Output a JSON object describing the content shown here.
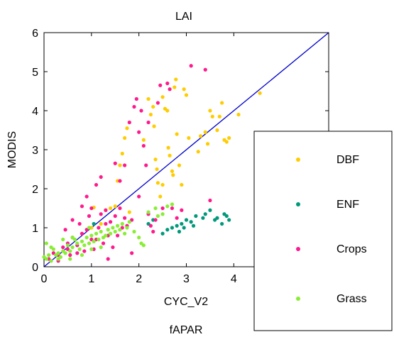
{
  "chart_data": {
    "type": "scatter",
    "title": "LAI",
    "xlabel": "CYC_V2",
    "ylabel": "MODIS",
    "bottom_label": "fAPAR",
    "xlim": [
      0,
      6
    ],
    "ylim": [
      0,
      6
    ],
    "xticks": [
      "0",
      "1",
      "2",
      "3",
      "4"
    ],
    "yticks": [
      "0",
      "1",
      "2",
      "3",
      "4",
      "5",
      "6"
    ],
    "reference_line": {
      "from": [
        0,
        0
      ],
      "to": [
        6,
        6
      ],
      "color": "#0000cc"
    },
    "legend_position": "bottom-right",
    "grid": false,
    "series": [
      {
        "name": "DBF",
        "color": "#ffcc00",
        "points": [
          [
            1.05,
            1.52
          ],
          [
            1.3,
            1.45
          ],
          [
            1.4,
            1.5
          ],
          [
            1.5,
            1.55
          ],
          [
            1.55,
            2.2
          ],
          [
            1.6,
            2.6
          ],
          [
            1.65,
            2.9
          ],
          [
            1.7,
            3.3
          ],
          [
            1.75,
            3.55
          ],
          [
            2.1,
            3.25
          ],
          [
            2.2,
            4.3
          ],
          [
            2.25,
            3.9
          ],
          [
            2.3,
            4.1
          ],
          [
            2.32,
            3.6
          ],
          [
            2.35,
            2.75
          ],
          [
            2.38,
            2.5
          ],
          [
            2.4,
            2.15
          ],
          [
            2.45,
            1.8
          ],
          [
            2.5,
            2.1
          ],
          [
            2.5,
            4.35
          ],
          [
            2.55,
            4.05
          ],
          [
            2.6,
            4.0
          ],
          [
            2.62,
            3.05
          ],
          [
            2.65,
            2.85
          ],
          [
            2.7,
            2.45
          ],
          [
            2.72,
            2.35
          ],
          [
            2.75,
            4.6
          ],
          [
            2.78,
            4.8
          ],
          [
            2.8,
            3.4
          ],
          [
            2.85,
            2.6
          ],
          [
            2.9,
            2.1
          ],
          [
            2.95,
            4.55
          ],
          [
            3.0,
            4.4
          ],
          [
            3.05,
            3.3
          ],
          [
            3.25,
            2.95
          ],
          [
            3.3,
            3.35
          ],
          [
            3.4,
            3.45
          ],
          [
            3.45,
            3.15
          ],
          [
            3.5,
            4.0
          ],
          [
            3.55,
            3.85
          ],
          [
            3.65,
            3.5
          ],
          [
            3.7,
            3.85
          ],
          [
            3.75,
            4.2
          ],
          [
            3.8,
            3.25
          ],
          [
            3.85,
            3.2
          ],
          [
            3.9,
            3.3
          ],
          [
            4.1,
            3.9
          ],
          [
            4.55,
            4.45
          ],
          [
            1.0,
            1.0
          ],
          [
            1.2,
            1.1
          ],
          [
            1.8,
            1.4
          ]
        ]
      },
      {
        "name": "ENF",
        "color": "#00997a",
        "points": [
          [
            2.5,
            0.85
          ],
          [
            2.6,
            0.95
          ],
          [
            2.7,
            1.0
          ],
          [
            2.8,
            1.05
          ],
          [
            2.85,
            0.9
          ],
          [
            2.9,
            1.1
          ],
          [
            2.95,
            1.0
          ],
          [
            3.0,
            1.2
          ],
          [
            3.1,
            1.15
          ],
          [
            3.15,
            1.05
          ],
          [
            3.2,
            1.3
          ],
          [
            3.35,
            1.25
          ],
          [
            3.4,
            1.35
          ],
          [
            3.5,
            1.45
          ],
          [
            3.6,
            1.2
          ],
          [
            3.65,
            1.25
          ],
          [
            3.75,
            1.1
          ],
          [
            3.8,
            1.35
          ],
          [
            3.85,
            1.3
          ],
          [
            3.9,
            1.2
          ],
          [
            2.2,
            1.1
          ],
          [
            2.3,
            1.2
          ],
          [
            1.05,
            1.1
          ]
        ]
      },
      {
        "name": "Crops",
        "color": "#ff1a8c",
        "points": [
          [
            0.1,
            0.2
          ],
          [
            0.2,
            0.35
          ],
          [
            0.3,
            0.3
          ],
          [
            0.4,
            0.5
          ],
          [
            0.45,
            0.95
          ],
          [
            0.5,
            0.6
          ],
          [
            0.55,
            0.3
          ],
          [
            0.6,
            0.75
          ],
          [
            0.7,
            0.55
          ],
          [
            0.75,
            1.1
          ],
          [
            0.8,
            0.85
          ],
          [
            0.85,
            0.4
          ],
          [
            0.9,
            0.95
          ],
          [
            0.95,
            1.3
          ],
          [
            1.0,
            1.5
          ],
          [
            1.05,
            0.45
          ],
          [
            1.1,
            0.7
          ],
          [
            1.15,
            1.0
          ],
          [
            1.2,
            1.35
          ],
          [
            1.25,
            0.6
          ],
          [
            1.3,
            1.45
          ],
          [
            1.35,
            0.8
          ],
          [
            1.4,
            1.15
          ],
          [
            1.45,
            0.5
          ],
          [
            1.5,
            1.3
          ],
          [
            1.55,
            0.8
          ],
          [
            1.6,
            2.2
          ],
          [
            1.65,
            1.0
          ],
          [
            1.7,
            2.6
          ],
          [
            1.75,
            1.05
          ],
          [
            1.8,
            3.7
          ],
          [
            1.85,
            1.2
          ],
          [
            1.9,
            4.1
          ],
          [
            1.95,
            4.3
          ],
          [
            2.0,
            3.45
          ],
          [
            2.05,
            4.0
          ],
          [
            2.1,
            3.1
          ],
          [
            2.15,
            2.6
          ],
          [
            2.2,
            3.7
          ],
          [
            2.25,
            1.05
          ],
          [
            2.3,
            0.9
          ],
          [
            2.35,
            1.2
          ],
          [
            2.4,
            4.2
          ],
          [
            2.45,
            4.65
          ],
          [
            2.5,
            1.5
          ],
          [
            2.6,
            4.7
          ],
          [
            2.65,
            4.55
          ],
          [
            2.7,
            1.5
          ],
          [
            2.8,
            1.25
          ],
          [
            2.9,
            1.45
          ],
          [
            3.1,
            5.15
          ],
          [
            3.4,
            5.05
          ],
          [
            3.5,
            1.7
          ],
          [
            1.5,
            2.65
          ],
          [
            1.2,
            2.3
          ],
          [
            0.9,
            1.8
          ],
          [
            1.1,
            2.1
          ],
          [
            0.6,
            1.2
          ],
          [
            1.35,
            0.2
          ],
          [
            1.85,
            0.35
          ],
          [
            0.8,
            1.55
          ],
          [
            1.6,
            1.5
          ],
          [
            2.0,
            1.8
          ],
          [
            2.2,
            1.35
          ],
          [
            1.7,
            1.25
          ],
          [
            1.3,
            1.1
          ],
          [
            0.5,
            0.45
          ],
          [
            0.3,
            0.15
          ],
          [
            0.7,
            0.35
          ],
          [
            1.0,
            0.7
          ]
        ]
      },
      {
        "name": "Grass",
        "color": "#88ee33",
        "points": [
          [
            0.0,
            0.25
          ],
          [
            0.05,
            0.2
          ],
          [
            0.1,
            0.3
          ],
          [
            0.15,
            0.15
          ],
          [
            0.2,
            0.45
          ],
          [
            0.25,
            0.3
          ],
          [
            0.3,
            0.2
          ],
          [
            0.35,
            0.25
          ],
          [
            0.4,
            0.4
          ],
          [
            0.45,
            0.35
          ],
          [
            0.5,
            0.55
          ],
          [
            0.55,
            0.4
          ],
          [
            0.6,
            0.5
          ],
          [
            0.65,
            0.7
          ],
          [
            0.7,
            0.6
          ],
          [
            0.75,
            0.45
          ],
          [
            0.8,
            0.65
          ],
          [
            0.85,
            0.55
          ],
          [
            0.9,
            0.75
          ],
          [
            0.95,
            0.6
          ],
          [
            1.0,
            0.8
          ],
          [
            1.05,
            0.65
          ],
          [
            1.1,
            0.85
          ],
          [
            1.15,
            0.7
          ],
          [
            1.2,
            0.9
          ],
          [
            1.25,
            0.75
          ],
          [
            1.3,
            0.8
          ],
          [
            1.35,
            0.95
          ],
          [
            1.4,
            0.85
          ],
          [
            1.45,
            1.0
          ],
          [
            1.5,
            0.9
          ],
          [
            1.55,
            1.05
          ],
          [
            1.6,
            0.95
          ],
          [
            1.65,
            1.1
          ],
          [
            1.7,
            0.85
          ],
          [
            1.75,
            1.0
          ],
          [
            1.8,
            1.15
          ],
          [
            1.9,
            0.9
          ],
          [
            2.0,
            0.75
          ],
          [
            2.05,
            0.6
          ],
          [
            2.1,
            0.55
          ],
          [
            2.2,
            1.4
          ],
          [
            2.35,
            1.5
          ],
          [
            2.4,
            1.3
          ],
          [
            2.5,
            1.35
          ],
          [
            2.6,
            1.55
          ],
          [
            2.7,
            1.6
          ],
          [
            0.6,
            0.75
          ],
          [
            0.3,
            0.35
          ],
          [
            0.15,
            0.5
          ],
          [
            0.05,
            0.6
          ],
          [
            0.4,
            0.7
          ],
          [
            0.8,
            0.3
          ],
          [
            0.95,
            1.0
          ],
          [
            1.2,
            0.5
          ],
          [
            1.0,
            0.45
          ],
          [
            0.55,
            0.2
          ]
        ]
      }
    ]
  }
}
